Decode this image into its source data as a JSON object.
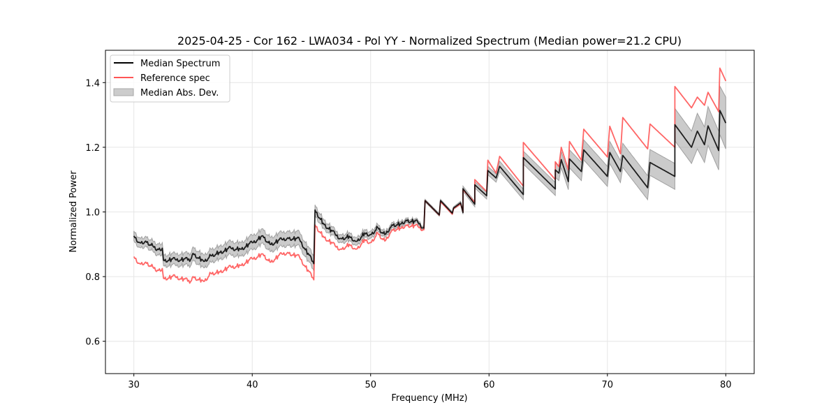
{
  "chart_data": {
    "type": "line",
    "title": "2025-04-25 - Cor 162 - LWA034 - Pol YY - Normalized Spectrum (Median power=21.2 CPU)",
    "xlabel": "Frequency (MHz)",
    "ylabel": "Normalized Power",
    "xlim": [
      27.6,
      82.4
    ],
    "ylim": [
      0.5,
      1.5
    ],
    "xticks": [
      30,
      40,
      50,
      60,
      70,
      80
    ],
    "xtick_labels": [
      "30",
      "40",
      "50",
      "60",
      "70",
      "80"
    ],
    "yticks": [
      0.6,
      0.8,
      1.0,
      1.2,
      1.4
    ],
    "ytick_labels": [
      "0.6",
      "0.8",
      "1.0",
      "1.2",
      "1.4"
    ],
    "grid": true,
    "legend_position": "top-left",
    "legend": [
      {
        "label": "Median Spectrum",
        "kind": "line",
        "color": "#000000"
      },
      {
        "label": "Reference spec",
        "kind": "line",
        "color": "#ff5555"
      },
      {
        "label": "Median Abs. Dev.",
        "kind": "band",
        "color": "#a0a0a0"
      }
    ],
    "series": [
      {
        "name": "Median Spectrum",
        "color": "#000000",
        "x": [
          30.0,
          30.5,
          31.0,
          31.6,
          32.0,
          32.4,
          32.5,
          33.5,
          34.8,
          35.0,
          35.9,
          36.5,
          37.2,
          38.2,
          39.0,
          40.0,
          40.9,
          41.5,
          42.5,
          43.0,
          44.0,
          45.2,
          45.3,
          46.0,
          47.0,
          47.5,
          48.2,
          48.8,
          49.5,
          50.0,
          50.6,
          51.2,
          51.8,
          52.5,
          53.0,
          54.0,
          54.5,
          54.6,
          55.8,
          55.9,
          56.9,
          57.0,
          57.6,
          57.8,
          57.8,
          58.8,
          58.8,
          59.8,
          59.9,
          60.6,
          60.9,
          62.9,
          62.9,
          65.6,
          65.6,
          65.9,
          66.1,
          66.7,
          66.8,
          67.8,
          68.0,
          70.0,
          70.2,
          71.1,
          71.3,
          73.4,
          73.6,
          75.7,
          75.7,
          77.1,
          77.6,
          78.2,
          78.5,
          79.4,
          79.5,
          80.0
        ],
        "y": [
          0.926,
          0.905,
          0.91,
          0.895,
          0.885,
          0.888,
          0.851,
          0.853,
          0.853,
          0.872,
          0.847,
          0.865,
          0.875,
          0.888,
          0.885,
          0.905,
          0.926,
          0.9,
          0.915,
          0.92,
          0.915,
          0.84,
          1.006,
          0.965,
          0.931,
          0.918,
          0.925,
          0.909,
          0.935,
          0.93,
          0.952,
          0.93,
          0.96,
          0.963,
          0.975,
          0.968,
          0.95,
          1.035,
          0.991,
          1.035,
          0.996,
          1.012,
          1.028,
          0.998,
          1.072,
          1.024,
          1.084,
          1.05,
          1.128,
          1.105,
          1.141,
          1.054,
          1.168,
          1.071,
          1.13,
          1.12,
          1.162,
          1.094,
          1.164,
          1.125,
          1.192,
          1.11,
          1.184,
          1.125,
          1.175,
          1.075,
          1.153,
          1.11,
          1.27,
          1.2,
          1.25,
          1.208,
          1.266,
          1.19,
          1.314,
          1.275
        ]
      },
      {
        "name": "Reference spec",
        "color": "#ff5555",
        "x": [
          30.0,
          30.5,
          31.0,
          31.6,
          32.0,
          32.4,
          32.5,
          33.5,
          34.8,
          35.0,
          35.9,
          36.5,
          37.2,
          38.2,
          39.0,
          40.0,
          40.9,
          41.5,
          42.5,
          43.0,
          44.0,
          45.2,
          45.3,
          46.0,
          47.0,
          47.5,
          48.2,
          48.8,
          49.5,
          50.0,
          50.6,
          51.2,
          51.8,
          52.5,
          53.0,
          54.0,
          54.5,
          54.6,
          55.8,
          55.9,
          56.9,
          57.0,
          57.6,
          57.8,
          57.8,
          58.8,
          58.8,
          59.8,
          59.9,
          60.6,
          60.9,
          62.9,
          62.9,
          65.6,
          65.6,
          65.9,
          66.1,
          66.7,
          66.8,
          67.8,
          68.0,
          70.0,
          70.2,
          71.1,
          71.3,
          73.4,
          73.6,
          75.7,
          75.7,
          77.1,
          77.6,
          78.2,
          78.5,
          79.4,
          79.5,
          80.0
        ],
        "y": [
          0.862,
          0.84,
          0.845,
          0.83,
          0.82,
          0.825,
          0.795,
          0.8,
          0.785,
          0.8,
          0.785,
          0.81,
          0.815,
          0.83,
          0.835,
          0.855,
          0.87,
          0.845,
          0.87,
          0.875,
          0.86,
          0.79,
          0.96,
          0.925,
          0.895,
          0.885,
          0.9,
          0.885,
          0.915,
          0.905,
          0.935,
          0.91,
          0.945,
          0.95,
          0.96,
          0.955,
          0.945,
          1.035,
          0.99,
          1.032,
          0.993,
          1.01,
          1.025,
          1.0,
          1.068,
          1.03,
          1.1,
          1.063,
          1.16,
          1.12,
          1.172,
          1.08,
          1.215,
          1.1,
          1.155,
          1.14,
          1.2,
          1.13,
          1.218,
          1.16,
          1.256,
          1.17,
          1.265,
          1.18,
          1.292,
          1.195,
          1.272,
          1.2,
          1.388,
          1.322,
          1.355,
          1.33,
          1.37,
          1.31,
          1.445,
          1.405
        ]
      }
    ],
    "band": {
      "name": "Median Abs. Dev.",
      "color": "#a0a0a0",
      "half_width": [
        0.015,
        0.015,
        0.015,
        0.016,
        0.017,
        0.017,
        0.017,
        0.018,
        0.019,
        0.02,
        0.02,
        0.02,
        0.02,
        0.021,
        0.021,
        0.022,
        0.022,
        0.022,
        0.022,
        0.022,
        0.022,
        0.022,
        0.016,
        0.014,
        0.012,
        0.012,
        0.012,
        0.012,
        0.011,
        0.011,
        0.01,
        0.009,
        0.008,
        0.008,
        0.007,
        0.006,
        0.005,
        0.004,
        0.004,
        0.004,
        0.004,
        0.004,
        0.005,
        0.005,
        0.008,
        0.008,
        0.01,
        0.01,
        0.013,
        0.013,
        0.016,
        0.016,
        0.02,
        0.02,
        0.023,
        0.023,
        0.025,
        0.025,
        0.028,
        0.028,
        0.031,
        0.031,
        0.034,
        0.034,
        0.037,
        0.037,
        0.04,
        0.04,
        0.05,
        0.05,
        0.055,
        0.055,
        0.06,
        0.06,
        0.075,
        0.08
      ]
    }
  }
}
